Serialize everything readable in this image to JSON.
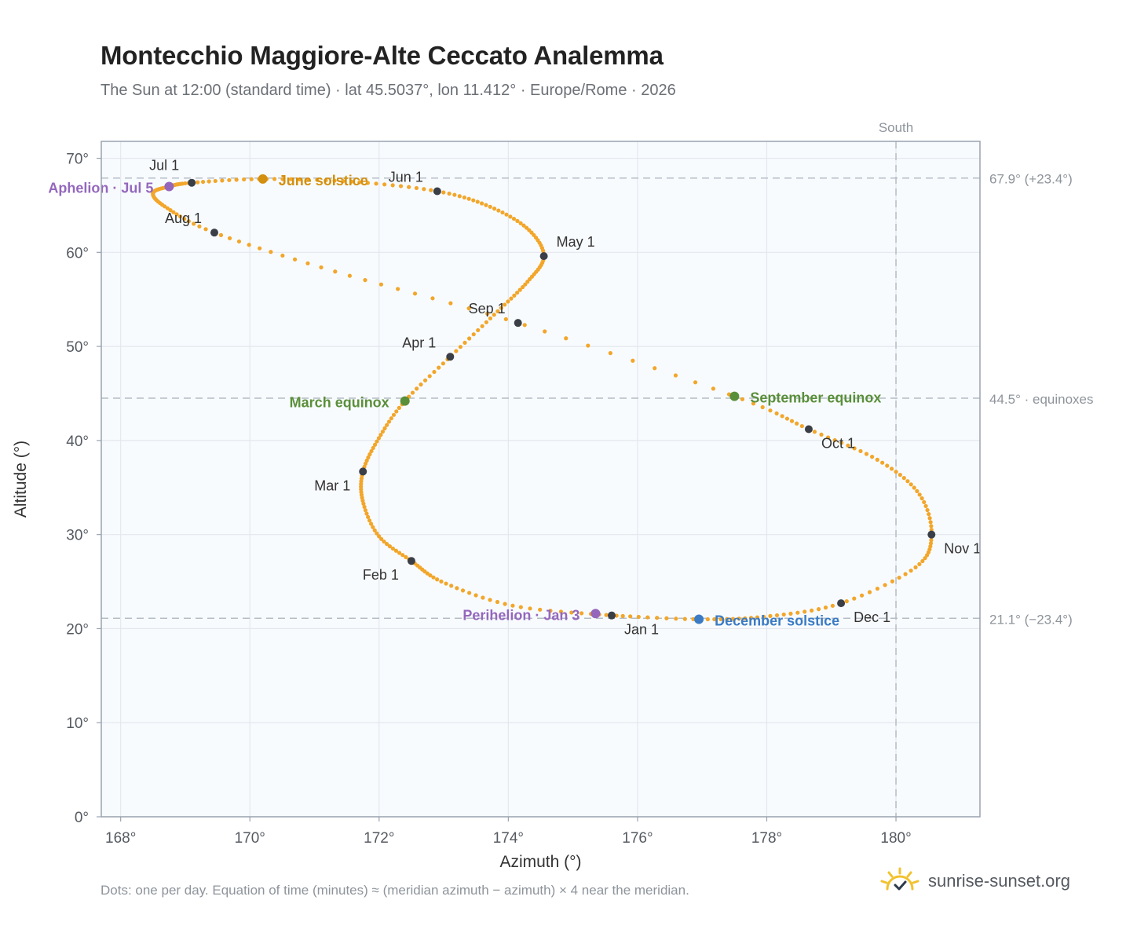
{
  "title": "Montecchio Maggiore-Alte Ceccato Analemma",
  "subtitle": "The Sun at 12:00 (standard time) · lat 45.5037°, lon 11.412° · Europe/Rome · 2026",
  "footnote": "Dots: one per day. Equation of time (minutes) ≈ (meridian azimuth − azimuth) × 4 near the meridian.",
  "brand": {
    "name": "sunrise-sunset.org",
    "icon": "sun-logo-icon"
  },
  "colors": {
    "curve": "#f2a62a",
    "month_dot": "#3a3f47",
    "solstice_june": "#d38f0f",
    "equinox": "#5a8f3a",
    "solstice_december": "#3b7bc4",
    "apsis": "#9467bd",
    "plot_bg": "#f8fbfe",
    "grid": "#e3e8ee",
    "frame": "#9aa3b0"
  },
  "chart_data": {
    "type": "scatter",
    "xlabel": "Azimuth (°)",
    "ylabel": "Altitude (°)",
    "xlim": [
      167.7,
      181.3
    ],
    "ylim": [
      0,
      71.8
    ],
    "xticks": [
      168,
      170,
      172,
      174,
      176,
      178,
      180
    ],
    "yticks": [
      0,
      10,
      20,
      30,
      40,
      50,
      60,
      70
    ],
    "xtick_labels": [
      "168°",
      "170°",
      "172°",
      "174°",
      "176°",
      "178°",
      "180°"
    ],
    "ytick_labels": [
      "0°",
      "10°",
      "20°",
      "30°",
      "40°",
      "50°",
      "60°",
      "70°"
    ],
    "grid": true,
    "meridian": {
      "label": "South",
      "x": 180
    },
    "reference_lines": [
      {
        "y": 67.9,
        "label": "67.9° (+23.4°)"
      },
      {
        "y": 44.5,
        "label": "44.5° · equinoxes"
      },
      {
        "y": 21.1,
        "label": "21.1° (−23.4°)"
      }
    ],
    "month_markers": [
      {
        "label": "Jan 1",
        "x": 175.6,
        "y": 21.4
      },
      {
        "label": "Feb 1",
        "x": 172.5,
        "y": 27.2
      },
      {
        "label": "Mar 1",
        "x": 171.75,
        "y": 36.7
      },
      {
        "label": "Apr 1",
        "x": 173.1,
        "y": 48.9
      },
      {
        "label": "May 1",
        "x": 174.55,
        "y": 59.6
      },
      {
        "label": "Jun 1",
        "x": 172.9,
        "y": 66.5
      },
      {
        "label": "Jul 1",
        "x": 169.1,
        "y": 67.4
      },
      {
        "label": "Aug 1",
        "x": 169.45,
        "y": 62.1
      },
      {
        "label": "Sep 1",
        "x": 174.15,
        "y": 52.5
      },
      {
        "label": "Oct 1",
        "x": 178.65,
        "y": 41.2
      },
      {
        "label": "Nov 1",
        "x": 180.55,
        "y": 30.0
      },
      {
        "label": "Dec 1",
        "x": 179.15,
        "y": 22.7
      }
    ],
    "events": [
      {
        "label": "March equinox",
        "x": 172.4,
        "y": 44.2,
        "kind": "equinox"
      },
      {
        "label": "June solstice",
        "x": 170.2,
        "y": 67.8,
        "kind": "solstice_june"
      },
      {
        "label": "September equinox",
        "x": 177.5,
        "y": 44.7,
        "kind": "equinox"
      },
      {
        "label": "December solstice",
        "x": 176.95,
        "y": 21.0,
        "kind": "solstice_december"
      },
      {
        "label": "Perihelion · Jan 3",
        "x": 175.35,
        "y": 21.6,
        "kind": "apsis"
      },
      {
        "label": "Aphelion · Jul 5",
        "x": 168.75,
        "y": 67.0,
        "kind": "apsis"
      }
    ],
    "path": [
      [
        175.6,
        21.4
      ],
      [
        174.1,
        22.4
      ],
      [
        173.0,
        24.9
      ],
      [
        172.5,
        27.2
      ],
      [
        172.0,
        29.8
      ],
      [
        171.75,
        33.5
      ],
      [
        171.75,
        36.7
      ],
      [
        172.0,
        40.3
      ],
      [
        172.4,
        44.2
      ],
      [
        173.1,
        48.9
      ],
      [
        173.8,
        53.5
      ],
      [
        174.3,
        56.9
      ],
      [
        174.55,
        59.6
      ],
      [
        174.3,
        62.5
      ],
      [
        173.7,
        64.9
      ],
      [
        172.9,
        66.5
      ],
      [
        171.6,
        67.5
      ],
      [
        170.2,
        67.8
      ],
      [
        169.1,
        67.4
      ],
      [
        168.75,
        67.0
      ],
      [
        168.5,
        66.3
      ],
      [
        168.7,
        64.8
      ],
      [
        169.45,
        62.1
      ],
      [
        171.3,
        58.0
      ],
      [
        174.15,
        52.5
      ],
      [
        177.5,
        44.7
      ],
      [
        178.65,
        41.2
      ],
      [
        179.7,
        38.0
      ],
      [
        180.35,
        34.4
      ],
      [
        180.55,
        30.0
      ],
      [
        180.3,
        26.5
      ],
      [
        179.15,
        22.7
      ],
      [
        178.0,
        21.3
      ],
      [
        176.95,
        21.0
      ],
      [
        175.6,
        21.4
      ]
    ]
  }
}
